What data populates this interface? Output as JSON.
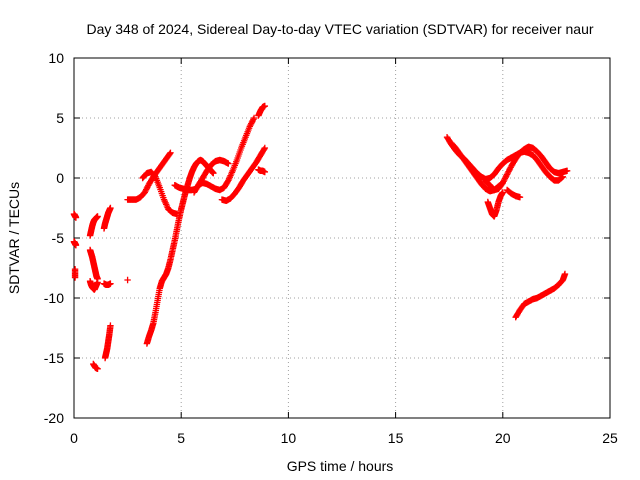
{
  "chart_data": {
    "type": "scatter",
    "title": "Day 348 of 2024, Sidereal Day-to-day VTEC variation (SDTVAR) for receiver naur",
    "xlabel": "GPS time / hours",
    "ylabel": "SDTVAR / TECUs",
    "xlim": [
      0,
      25
    ],
    "ylim": [
      -20,
      10
    ],
    "xticks": [
      0,
      5,
      10,
      15,
      20,
      25
    ],
    "yticks": [
      -20,
      -15,
      -10,
      -5,
      0,
      5,
      10
    ],
    "grid": true,
    "marker": "+",
    "color": "#ff0000",
    "series": [
      {
        "x": [
          0.0,
          0.03,
          0.06,
          0.09
        ],
        "y": [
          -3.0,
          -3.1,
          -3.2,
          -3.3
        ]
      },
      {
        "x": [
          0.0,
          0.03,
          0.06,
          0.09
        ],
        "y": [
          -5.3,
          -5.4,
          -5.5,
          -5.6
        ]
      },
      {
        "x": [
          0.05,
          0.05
        ],
        "y": [
          -7.6,
          -8.3
        ]
      },
      {
        "x": [
          0.75,
          0.8,
          0.85,
          0.9,
          0.95,
          1.0,
          1.05,
          1.1
        ],
        "y": [
          -4.8,
          -4.4,
          -4.0,
          -3.7,
          -3.5,
          -3.4,
          -3.3,
          -3.2
        ]
      },
      {
        "x": [
          0.75,
          0.8,
          0.85,
          0.9,
          0.95,
          1.0,
          1.05,
          1.1
        ],
        "y": [
          -6.0,
          -6.3,
          -6.6,
          -7.0,
          -7.4,
          -7.8,
          -8.2,
          -8.4
        ]
      },
      {
        "x": [
          0.75,
          0.8,
          0.85,
          0.9,
          0.95,
          1.0,
          1.05,
          1.1
        ],
        "y": [
          -8.6,
          -8.9,
          -9.1,
          -9.2,
          -9.3,
          -9.1,
          -8.9,
          -8.7
        ]
      },
      {
        "x": [
          0.9,
          1.0,
          1.1
        ],
        "y": [
          -15.5,
          -15.8,
          -15.9
        ]
      },
      {
        "x": [
          1.4,
          1.45,
          1.5,
          1.55,
          1.6,
          1.65,
          1.7
        ],
        "y": [
          -4.2,
          -3.8,
          -3.5,
          -3.2,
          -2.9,
          -2.7,
          -2.5
        ]
      },
      {
        "x": [
          1.4,
          1.5,
          1.6,
          1.7
        ],
        "y": [
          -8.8,
          -8.9,
          -8.9,
          -8.8
        ]
      },
      {
        "x": [
          1.45,
          1.5,
          1.55,
          1.6,
          1.65,
          1.7
        ],
        "y": [
          -15.0,
          -14.6,
          -14.2,
          -13.6,
          -13.0,
          -12.3
        ]
      },
      {
        "x": [
          2.5
        ],
        "y": [
          -8.5
        ]
      },
      {
        "x": [
          2.5,
          2.7,
          2.9,
          3.1,
          3.3,
          3.5,
          3.7,
          3.9,
          4.1,
          4.3,
          4.5
        ],
        "y": [
          -1.8,
          -1.8,
          -1.8,
          -1.6,
          -1.2,
          -0.5,
          0.1,
          0.6,
          1.1,
          1.6,
          2.1
        ]
      },
      {
        "x": [
          3.2,
          3.4,
          3.6,
          3.8,
          4.0,
          4.2,
          4.4,
          4.6,
          4.8
        ],
        "y": [
          0.0,
          0.4,
          0.5,
          0.1,
          -0.8,
          -1.8,
          -2.6,
          -2.9,
          -3.0
        ]
      },
      {
        "x": [
          3.4,
          3.5,
          3.6,
          3.7,
          3.8,
          3.9,
          4.0,
          4.1,
          4.2,
          4.3,
          4.4,
          4.5,
          4.6,
          4.7,
          4.8,
          4.9,
          5.0,
          5.1,
          5.2,
          5.3,
          5.4,
          5.5,
          5.6,
          5.7,
          5.8,
          5.9,
          6.0,
          6.1,
          6.2,
          6.3,
          6.4,
          6.5
        ],
        "y": [
          -13.8,
          -13.2,
          -12.7,
          -12.1,
          -11.2,
          -10.2,
          -9.2,
          -8.6,
          -8.3,
          -8.0,
          -7.5,
          -6.8,
          -6.0,
          -5.2,
          -4.3,
          -3.4,
          -2.6,
          -1.9,
          -1.2,
          -0.6,
          0.0,
          0.5,
          0.9,
          1.2,
          1.4,
          1.5,
          1.4,
          1.2,
          1.0,
          0.8,
          0.6,
          0.4
        ]
      },
      {
        "x": [
          4.7,
          4.9,
          5.1,
          5.3,
          5.5,
          5.7
        ],
        "y": [
          -0.6,
          -0.8,
          -0.9,
          -1.0,
          -1.0,
          -0.9
        ]
      },
      {
        "x": [
          5.6,
          5.8,
          6.0,
          6.2,
          6.4,
          6.6,
          6.8,
          7.0,
          7.2
        ],
        "y": [
          -1.2,
          -0.6,
          0.0,
          0.6,
          1.1,
          1.4,
          1.5,
          1.4,
          1.2
        ]
      },
      {
        "x": [
          5.8,
          6.0,
          6.2,
          6.4,
          6.6,
          6.8,
          7.0,
          7.2,
          7.4,
          7.6,
          7.8,
          8.0,
          8.2,
          8.4
        ],
        "y": [
          -0.6,
          -0.4,
          -0.5,
          -0.7,
          -0.9,
          -1.0,
          -0.8,
          -0.2,
          0.6,
          1.5,
          2.5,
          3.4,
          4.3,
          5.0
        ]
      },
      {
        "x": [
          6.9,
          7.1,
          7.3,
          7.5,
          7.7,
          7.9,
          8.1,
          8.3,
          8.5,
          8.7,
          8.9
        ],
        "y": [
          -1.8,
          -1.9,
          -1.7,
          -1.3,
          -0.8,
          -0.2,
          0.3,
          0.8,
          1.3,
          1.9,
          2.5
        ]
      },
      {
        "x": [
          8.6,
          8.7,
          8.8,
          8.9
        ],
        "y": [
          5.2,
          5.6,
          5.9,
          6.0
        ]
      },
      {
        "x": [
          8.6,
          8.7,
          8.8,
          8.9
        ],
        "y": [
          0.7,
          0.6,
          0.6,
          0.5
        ]
      },
      {
        "x": [
          17.4,
          17.6,
          17.8,
          18.0,
          18.2,
          18.4,
          18.6,
          18.8,
          19.0,
          19.2,
          19.4,
          19.6,
          19.8,
          20.0,
          20.2,
          20.4,
          20.6,
          20.8,
          21.0,
          21.2,
          21.4,
          21.6,
          21.8,
          22.0,
          22.2,
          22.4,
          22.6,
          22.8
        ],
        "y": [
          3.4,
          2.8,
          2.3,
          1.9,
          1.6,
          1.2,
          0.8,
          0.4,
          0.1,
          -0.1,
          0.0,
          0.3,
          0.8,
          1.2,
          1.5,
          1.7,
          1.9,
          2.1,
          2.2,
          2.1,
          1.9,
          1.5,
          1.0,
          0.5,
          0.1,
          -0.2,
          -0.2,
          0.1
        ]
      },
      {
        "x": [
          17.6,
          17.8,
          18.0,
          18.2,
          18.4,
          18.6,
          18.8,
          19.0,
          19.2,
          19.4,
          19.6,
          19.8,
          20.0
        ],
        "y": [
          2.9,
          2.5,
          2.0,
          1.5,
          1.0,
          0.5,
          0.0,
          -0.5,
          -0.9,
          -1.1,
          -1.0,
          -0.7,
          -0.4
        ]
      },
      {
        "x": [
          19.2,
          19.4,
          19.6,
          19.8,
          20.0,
          20.2,
          20.4,
          20.6,
          20.8,
          21.0,
          21.2,
          21.4,
          21.6,
          21.8,
          22.0,
          22.2,
          22.4,
          22.6,
          22.8,
          23.0
        ],
        "y": [
          -0.3,
          -0.6,
          -1.0,
          -0.9,
          -0.4,
          0.3,
          1.0,
          1.6,
          2.1,
          2.4,
          2.6,
          2.5,
          2.2,
          1.8,
          1.3,
          0.8,
          0.5,
          0.4,
          0.5,
          0.6
        ]
      },
      {
        "x": [
          19.3,
          19.4,
          19.5,
          19.6,
          19.7,
          19.8,
          19.9,
          20.0
        ],
        "y": [
          -2.0,
          -2.5,
          -3.0,
          -3.2,
          -2.7,
          -2.0,
          -1.5,
          -1.2
        ]
      },
      {
        "x": [
          20.2,
          20.4,
          20.6,
          20.8
        ],
        "y": [
          -1.0,
          -1.3,
          -1.5,
          -1.6
        ]
      },
      {
        "x": [
          20.6,
          20.8,
          21.0,
          21.2,
          21.4,
          21.6,
          21.8,
          22.0,
          22.2,
          22.4,
          22.6,
          22.8,
          22.9
        ],
        "y": [
          -11.6,
          -11.0,
          -10.5,
          -10.3,
          -10.1,
          -10.0,
          -9.8,
          -9.6,
          -9.4,
          -9.2,
          -8.9,
          -8.5,
          -8.0
        ]
      }
    ]
  }
}
